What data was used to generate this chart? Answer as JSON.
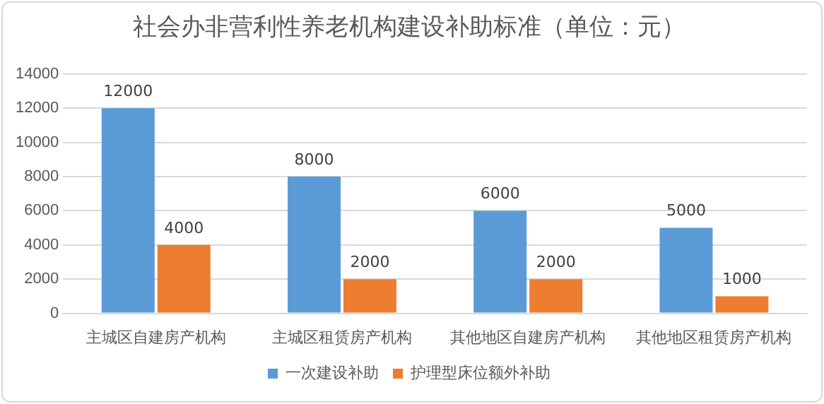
{
  "chart_data": {
    "type": "bar",
    "title": "社会办非营利性养老机构建设补助标准（单位：元）",
    "categories": [
      "主城区自建房产机构",
      "主城区租赁房产机构",
      "其他地区自建房产机构",
      "其他地区租赁房产机构"
    ],
    "series": [
      {
        "name": "一次建设补助",
        "color": "#5b9bd5",
        "values": [
          12000,
          8000,
          6000,
          5000
        ]
      },
      {
        "name": "护理型床位额外补助",
        "color": "#ed7d31",
        "values": [
          4000,
          2000,
          2000,
          1000
        ]
      }
    ],
    "ylim": [
      0,
      14000
    ],
    "yticks": [
      0,
      2000,
      4000,
      6000,
      8000,
      10000,
      12000,
      14000
    ],
    "grid": "y",
    "legend": "bottom",
    "data_labels": true
  }
}
